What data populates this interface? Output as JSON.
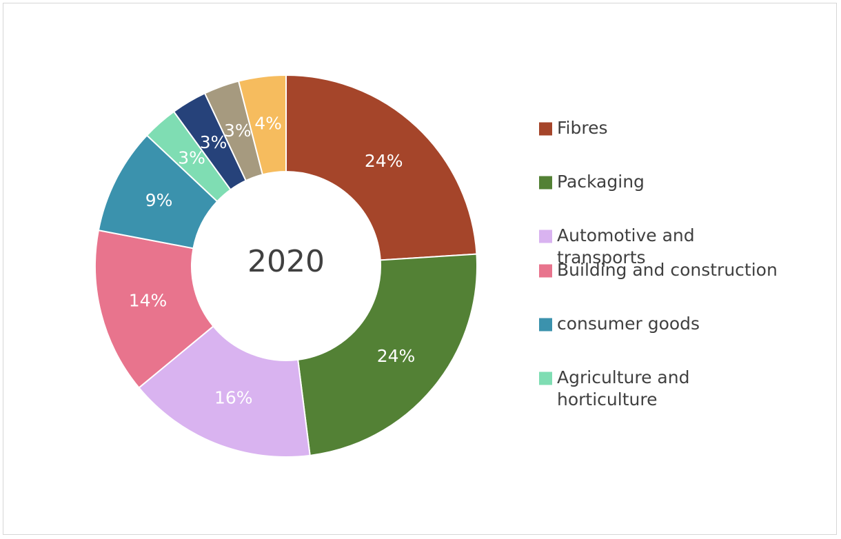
{
  "chart_data": {
    "type": "pie",
    "variant": "doughnut",
    "center_label": "2020",
    "legend_position": "right",
    "slices": [
      {
        "name": "Fibres",
        "value": 24,
        "label": "24%",
        "color": "#A5452A",
        "in_legend": true,
        "legend_lines": [
          "Fibres"
        ]
      },
      {
        "name": "Packaging",
        "value": 24,
        "label": "24%",
        "color": "#538135",
        "in_legend": true,
        "legend_lines": [
          "Packaging"
        ]
      },
      {
        "name": "Automotive and transports",
        "value": 16,
        "label": "16%",
        "color": "#D9B3F0",
        "in_legend": true,
        "legend_lines": [
          "Automotive and",
          "transports"
        ]
      },
      {
        "name": "Building and construction",
        "value": 14,
        "label": "14%",
        "color": "#E8748D",
        "in_legend": true,
        "legend_lines": [
          "Building and construction"
        ]
      },
      {
        "name": "consumer goods",
        "value": 9,
        "label": "9%",
        "color": "#3B92AD",
        "in_legend": true,
        "legend_lines": [
          "consumer goods"
        ]
      },
      {
        "name": "Agriculture and horticulture",
        "value": 3,
        "label": "3%",
        "color": "#7FDDB3",
        "in_legend": true,
        "legend_lines": [
          "Agriculture and",
          "horticulture"
        ]
      },
      {
        "name": "",
        "value": 3,
        "label": "3%",
        "color": "#26427A",
        "in_legend": false,
        "legend_lines": []
      },
      {
        "name": "",
        "value": 3,
        "label": "3%",
        "color": "#A69A7F",
        "in_legend": false,
        "legend_lines": []
      },
      {
        "name": "",
        "value": 4,
        "label": "4%",
        "color": "#F6BC5E",
        "in_legend": false,
        "legend_lines": []
      }
    ]
  }
}
